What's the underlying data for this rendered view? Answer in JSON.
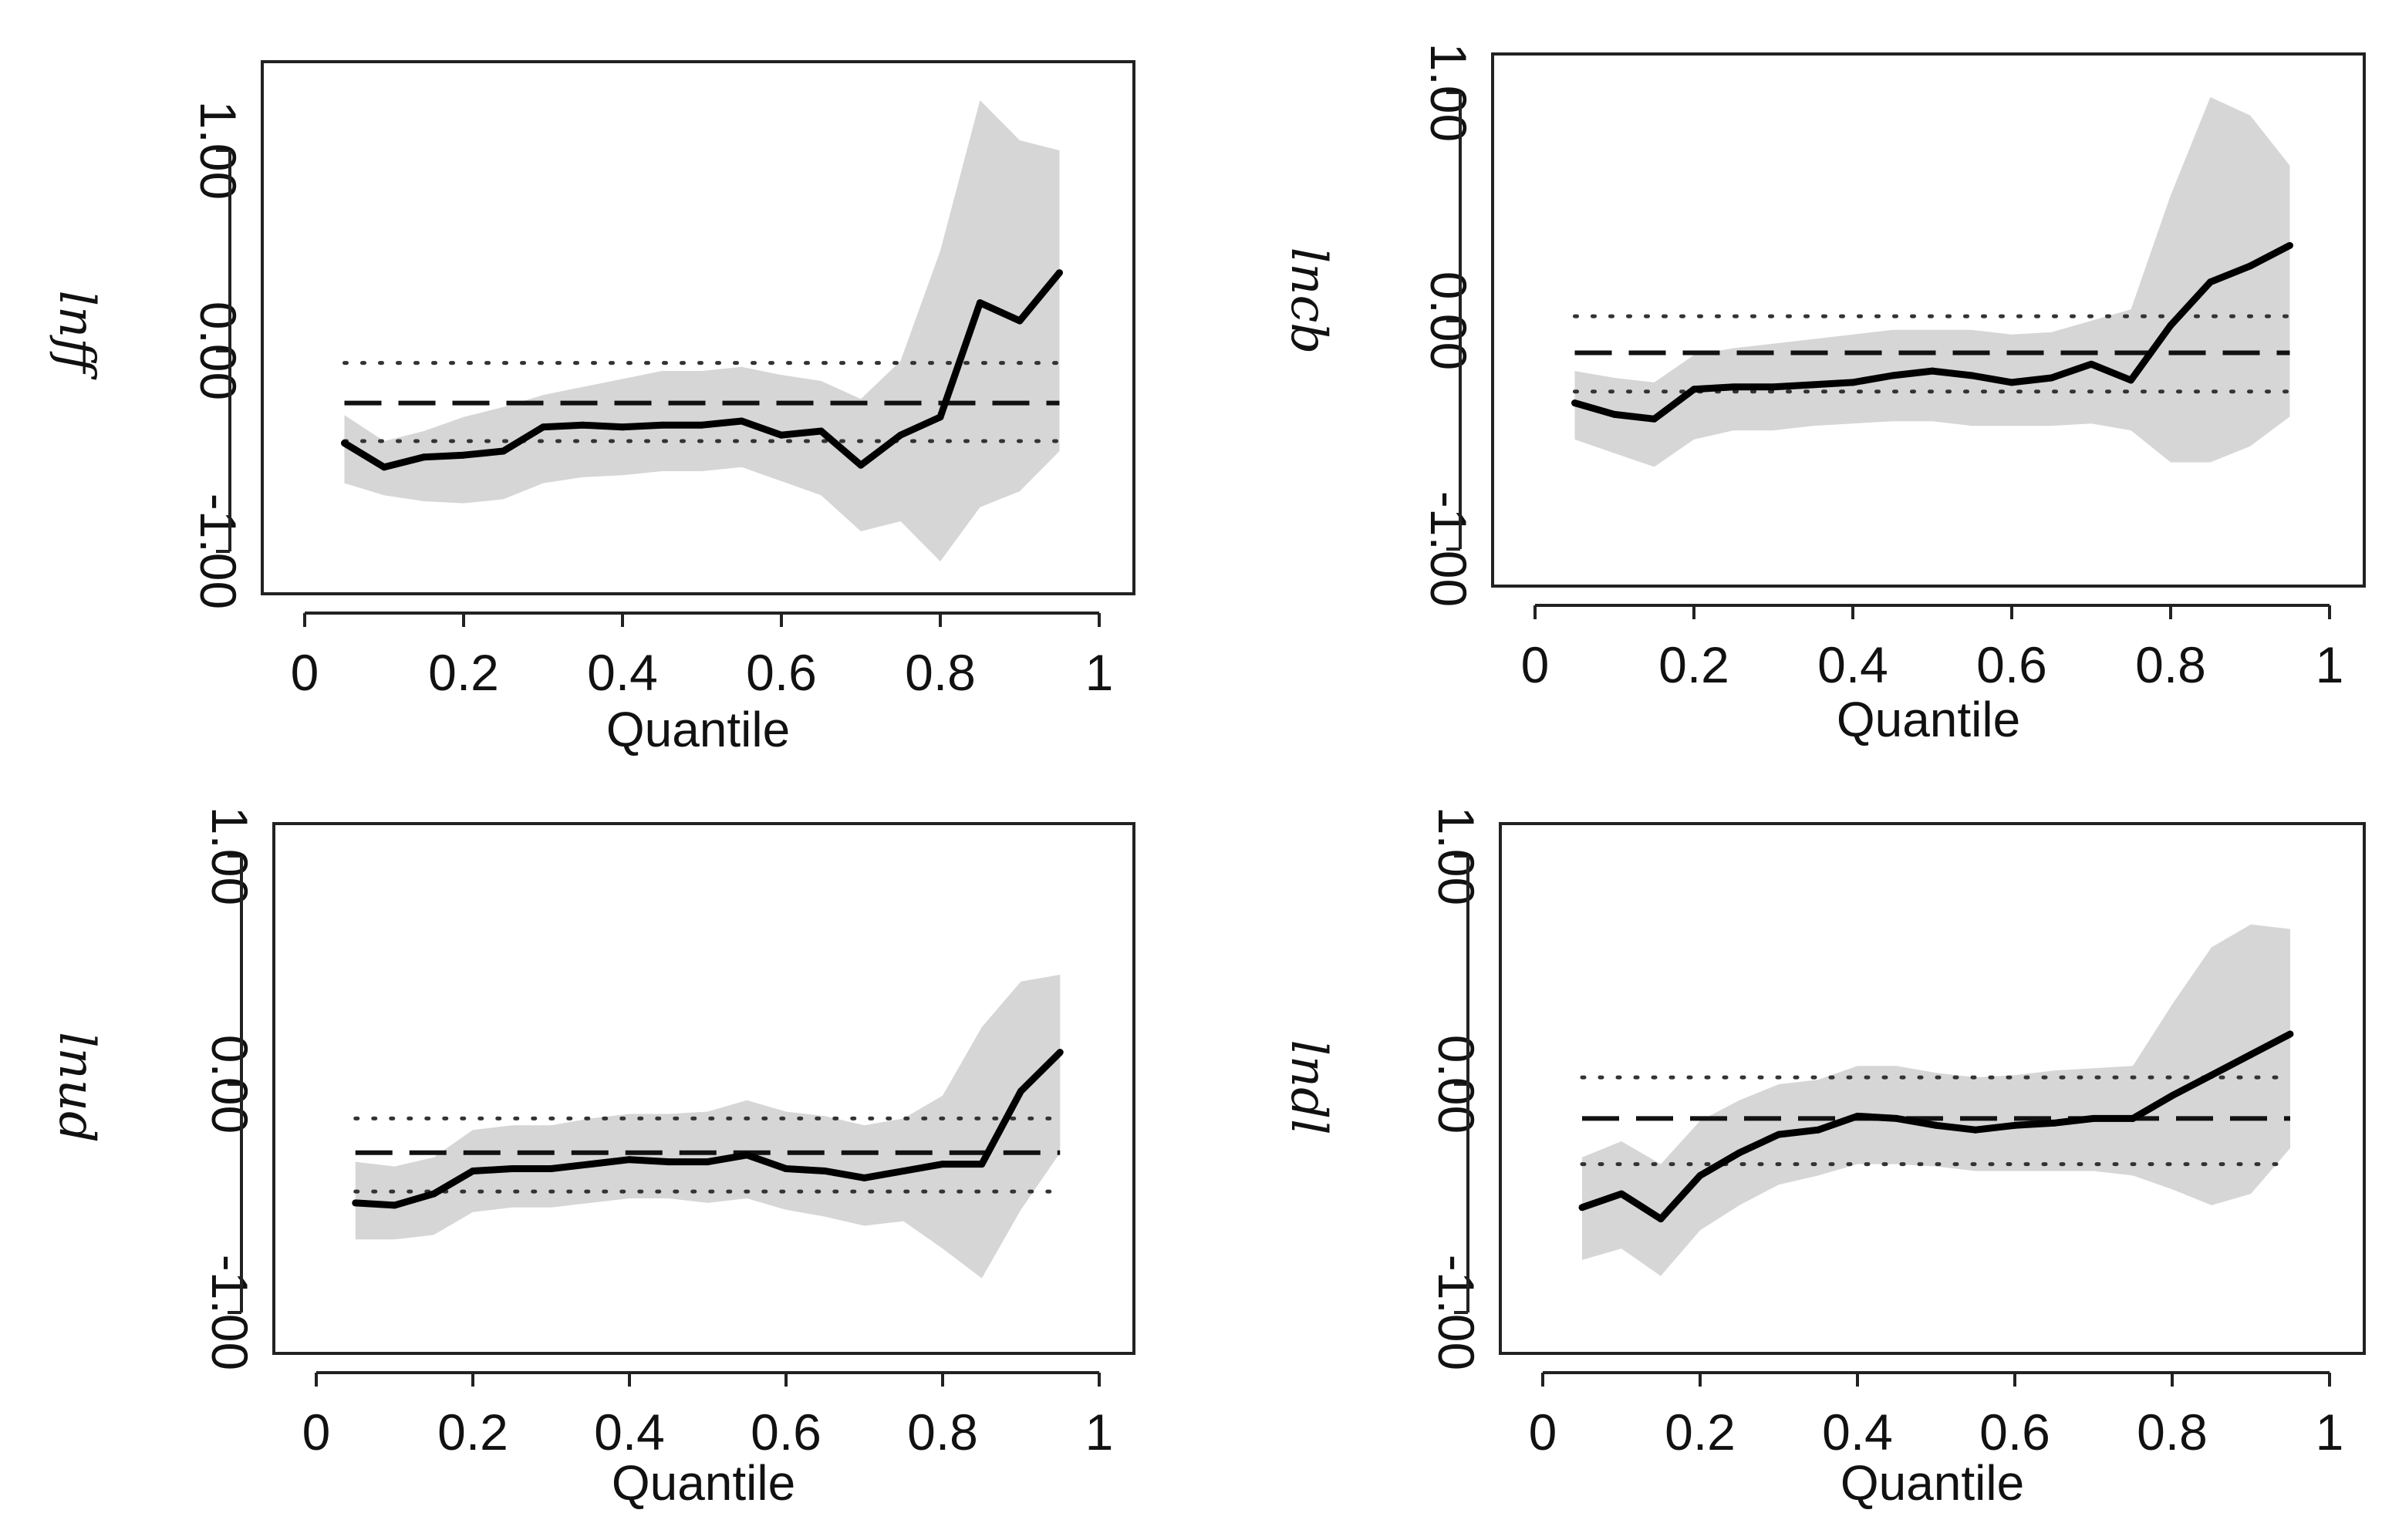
{
  "chart_data": [
    {
      "type": "line",
      "ylabel": "lnff",
      "xlabel": "Quantile",
      "xlim": [
        0,
        1
      ],
      "ylim": [
        -1.0,
        1.0
      ],
      "xticks": [
        0,
        0.2,
        0.4,
        0.6,
        0.8,
        1
      ],
      "xtick_labels": [
        "0",
        "0.2",
        "0.4",
        "0.6",
        "0.8",
        "1"
      ],
      "yticks": [
        -1.0,
        0.0,
        1.0
      ],
      "ytick_labels": [
        "-1.00",
        "0.00",
        "1.00"
      ],
      "quantile_estimate": {
        "x": [
          0.05,
          0.1,
          0.15,
          0.2,
          0.25,
          0.3,
          0.35,
          0.4,
          0.45,
          0.5,
          0.55,
          0.6,
          0.65,
          0.7,
          0.75,
          0.8,
          0.85,
          0.9,
          0.95
        ],
        "y": [
          -0.46,
          -0.58,
          -0.53,
          -0.52,
          -0.5,
          -0.38,
          -0.37,
          -0.38,
          -0.37,
          -0.37,
          -0.35,
          -0.42,
          -0.4,
          -0.57,
          -0.42,
          -0.33,
          0.24,
          0.15,
          0.39
        ]
      },
      "confidence_band": {
        "lower": [
          -0.66,
          -0.72,
          -0.75,
          -0.76,
          -0.74,
          -0.66,
          -0.63,
          -0.62,
          -0.6,
          -0.6,
          -0.58,
          -0.65,
          -0.72,
          -0.9,
          -0.85,
          -1.05,
          -0.78,
          -0.7,
          -0.5
        ],
        "upper": [
          -0.32,
          -0.45,
          -0.4,
          -0.33,
          -0.28,
          -0.22,
          -0.18,
          -0.14,
          -0.1,
          -0.1,
          -0.08,
          -0.12,
          -0.15,
          -0.24,
          -0.05,
          0.5,
          1.25,
          1.05,
          1.0
        ]
      },
      "ols_estimate": -0.26,
      "ols_ci": [
        -0.45,
        -0.06
      ]
    },
    {
      "type": "line",
      "ylabel": "lncb",
      "xlabel": "Quantile",
      "xlim": [
        0,
        1
      ],
      "ylim": [
        -1.0,
        1.0
      ],
      "xticks": [
        0,
        0.2,
        0.4,
        0.6,
        0.8,
        1
      ],
      "xtick_labels": [
        "0",
        "0.2",
        "0.4",
        "0.6",
        "0.8",
        "1"
      ],
      "yticks": [
        -1.0,
        0.0,
        1.0
      ],
      "ytick_labels": [
        "-1.00",
        "0.00",
        "1.00"
      ],
      "quantile_estimate": {
        "x": [
          0.05,
          0.1,
          0.15,
          0.2,
          0.25,
          0.3,
          0.35,
          0.4,
          0.45,
          0.5,
          0.55,
          0.6,
          0.65,
          0.7,
          0.75,
          0.8,
          0.85,
          0.9,
          0.95
        ],
        "y": [
          -0.36,
          -0.41,
          -0.43,
          -0.3,
          -0.29,
          -0.29,
          -0.28,
          -0.27,
          -0.24,
          -0.22,
          -0.24,
          -0.27,
          -0.25,
          -0.19,
          -0.26,
          -0.02,
          0.17,
          0.24,
          0.33
        ]
      },
      "confidence_band": {
        "lower": [
          -0.52,
          -0.58,
          -0.64,
          -0.52,
          -0.48,
          -0.48,
          -0.46,
          -0.45,
          -0.44,
          -0.44,
          -0.46,
          -0.46,
          -0.46,
          -0.45,
          -0.48,
          -0.62,
          -0.62,
          -0.55,
          -0.42
        ],
        "upper": [
          -0.22,
          -0.25,
          -0.27,
          -0.15,
          -0.12,
          -0.1,
          -0.08,
          -0.06,
          -0.04,
          -0.04,
          -0.04,
          -0.06,
          -0.05,
          0.0,
          0.05,
          0.55,
          0.98,
          0.9,
          0.68
        ]
      },
      "ols_estimate": -0.14,
      "ols_ci": [
        -0.31,
        0.02
      ]
    },
    {
      "type": "line",
      "ylabel": "lnud",
      "xlabel": "Quantile",
      "xlim": [
        0,
        1
      ],
      "ylim": [
        -1.0,
        1.0
      ],
      "xticks": [
        0,
        0.2,
        0.4,
        0.6,
        0.8,
        1
      ],
      "xtick_labels": [
        "0",
        "0.2",
        "0.4",
        "0.6",
        "0.8",
        "1"
      ],
      "yticks": [
        -1.0,
        0.0,
        1.0
      ],
      "ytick_labels": [
        "-1.00",
        "0.00",
        "1.00"
      ],
      "quantile_estimate": {
        "x": [
          0.05,
          0.1,
          0.15,
          0.2,
          0.25,
          0.3,
          0.35,
          0.4,
          0.45,
          0.5,
          0.55,
          0.6,
          0.65,
          0.7,
          0.75,
          0.8,
          0.85,
          0.9,
          0.95
        ],
        "y": [
          -0.52,
          -0.53,
          -0.48,
          -0.38,
          -0.37,
          -0.37,
          -0.35,
          -0.33,
          -0.34,
          -0.34,
          -0.31,
          -0.37,
          -0.38,
          -0.41,
          -0.38,
          -0.35,
          -0.35,
          -0.03,
          0.14
        ]
      },
      "confidence_band": {
        "lower": [
          -0.68,
          -0.68,
          -0.66,
          -0.56,
          -0.54,
          -0.54,
          -0.52,
          -0.5,
          -0.5,
          -0.52,
          -0.5,
          -0.55,
          -0.58,
          -0.62,
          -0.6,
          -0.72,
          -0.85,
          -0.55,
          -0.3
        ],
        "upper": [
          -0.34,
          -0.36,
          -0.32,
          -0.2,
          -0.18,
          -0.18,
          -0.15,
          -0.13,
          -0.13,
          -0.12,
          -0.07,
          -0.12,
          -0.14,
          -0.18,
          -0.15,
          -0.05,
          0.25,
          0.45,
          0.48
        ]
      },
      "ols_estimate": -0.3,
      "ols_ci": [
        -0.47,
        -0.15
      ]
    },
    {
      "type": "line",
      "ylabel": "lndl",
      "xlabel": "Quantile",
      "xlim": [
        0,
        1
      ],
      "ylim": [
        -1.0,
        1.0
      ],
      "xticks": [
        0,
        0.2,
        0.4,
        0.6,
        0.8,
        1
      ],
      "xtick_labels": [
        "0",
        "0.2",
        "0.4",
        "0.6",
        "0.8",
        "1"
      ],
      "yticks": [
        -1.0,
        0.0,
        1.0
      ],
      "ytick_labels": [
        "-1.00",
        "0.00",
        "1.00"
      ],
      "quantile_estimate": {
        "x": [
          0.05,
          0.1,
          0.15,
          0.2,
          0.25,
          0.3,
          0.35,
          0.4,
          0.45,
          0.5,
          0.55,
          0.6,
          0.65,
          0.7,
          0.75,
          0.8,
          0.85,
          0.9,
          0.95
        ],
        "y": [
          -0.54,
          -0.48,
          -0.59,
          -0.4,
          -0.3,
          -0.22,
          -0.2,
          -0.14,
          -0.15,
          -0.18,
          -0.2,
          -0.18,
          -0.17,
          -0.15,
          -0.15,
          -0.05,
          0.04,
          0.13,
          0.22
        ]
      },
      "confidence_band": {
        "lower": [
          -0.77,
          -0.72,
          -0.84,
          -0.64,
          -0.53,
          -0.44,
          -0.4,
          -0.35,
          -0.35,
          -0.36,
          -0.38,
          -0.38,
          -0.38,
          -0.38,
          -0.4,
          -0.46,
          -0.53,
          -0.48,
          -0.28
        ],
        "upper": [
          -0.32,
          -0.25,
          -0.35,
          -0.16,
          -0.07,
          0.0,
          0.02,
          0.08,
          0.08,
          0.05,
          0.03,
          0.04,
          0.06,
          0.07,
          0.08,
          0.35,
          0.6,
          0.7,
          0.68
        ]
      },
      "ols_estimate": -0.15,
      "ols_ci": [
        -0.35,
        0.03
      ]
    }
  ]
}
